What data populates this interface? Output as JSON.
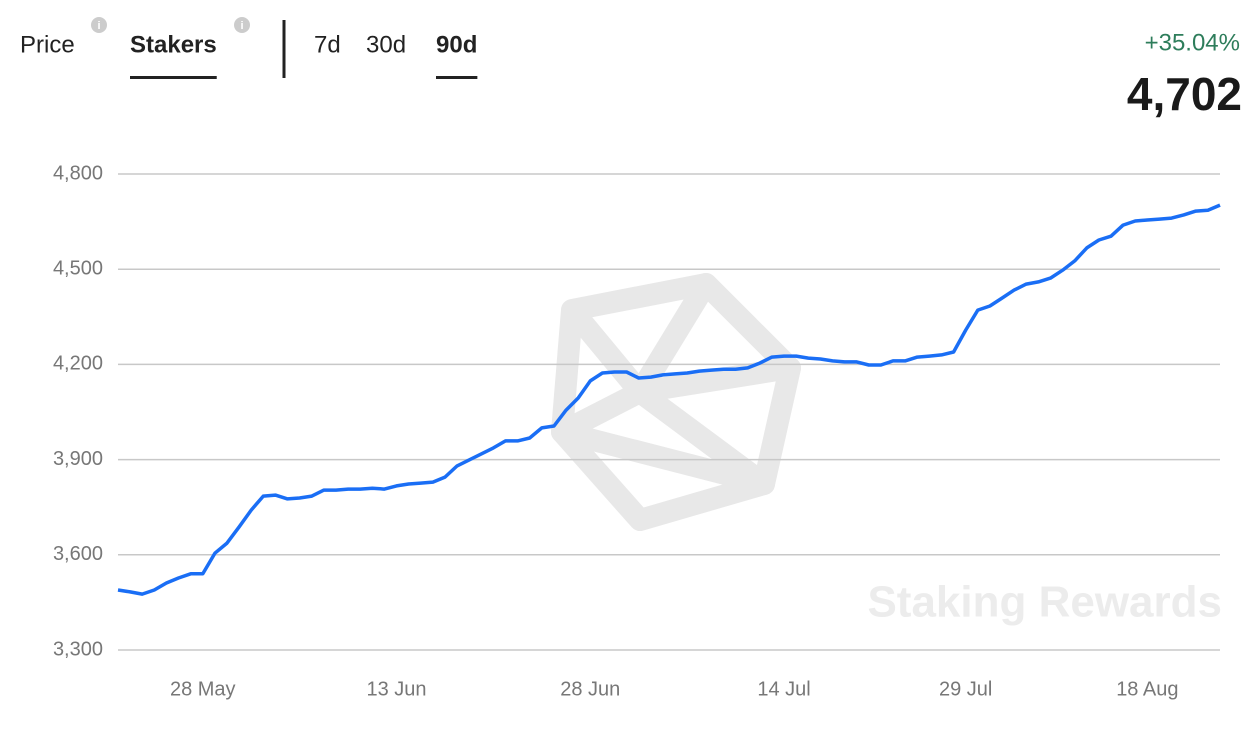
{
  "tabs": [
    "Price",
    "Stakers"
  ],
  "active_tab": 1,
  "periods": [
    "7d",
    "30d",
    "90d"
  ],
  "active_period": 2,
  "change": "+35.04%",
  "current_value": "4,702",
  "watermark": "Staking Rewards",
  "chart_data": {
    "type": "line",
    "categories": [
      null,
      null,
      null,
      null,
      null,
      null,
      null,
      "28 May",
      null,
      null,
      null,
      null,
      null,
      null,
      null,
      null,
      null,
      null,
      null,
      null,
      null,
      null,
      null,
      "13 Jun",
      null,
      null,
      null,
      null,
      null,
      null,
      null,
      null,
      null,
      null,
      null,
      null,
      null,
      null,
      null,
      "28 Jun",
      null,
      null,
      null,
      null,
      null,
      null,
      null,
      null,
      null,
      null,
      null,
      null,
      null,
      null,
      null,
      "14 Jul",
      null,
      null,
      null,
      null,
      null,
      null,
      null,
      null,
      null,
      null,
      null,
      null,
      null,
      null,
      "29 Jul",
      null,
      null,
      null,
      null,
      null,
      null,
      null,
      null,
      null,
      null,
      null,
      null,
      null,
      null,
      "18 Aug",
      null,
      null,
      null,
      null,
      null,
      null
    ],
    "series": [
      {
        "name": "Stakers",
        "color": "#1a6ef5",
        "values": [
          3489,
          3483,
          3476,
          3489,
          3511,
          3527,
          3540,
          3540,
          3605,
          3637,
          3688,
          3741,
          3785,
          3788,
          3776,
          3779,
          3785,
          3804,
          3804,
          3807,
          3807,
          3810,
          3807,
          3817,
          3823,
          3826,
          3829,
          3845,
          3880,
          3899,
          3918,
          3937,
          3959,
          3959,
          3968,
          4000,
          4006,
          4056,
          4094,
          4148,
          4173,
          4176,
          4176,
          4157,
          4160,
          4167,
          4170,
          4173,
          4179,
          4182,
          4185,
          4185,
          4189,
          4204,
          4223,
          4226,
          4226,
          4220,
          4217,
          4211,
          4208,
          4208,
          4198,
          4198,
          4211,
          4211,
          4223,
          4226,
          4230,
          4239,
          4308,
          4371,
          4384,
          4409,
          4434,
          4453,
          4460,
          4472,
          4497,
          4526,
          4567,
          4592,
          4604,
          4639,
          4652,
          4655,
          4658,
          4661,
          4671,
          4683,
          4686,
          4702
        ]
      }
    ],
    "ylim": [
      3300,
      4800
    ],
    "yticks": [
      {
        "value": 3300,
        "label": "3,300"
      },
      {
        "value": 3600,
        "label": "3,600"
      },
      {
        "value": 3900,
        "label": "3,900"
      },
      {
        "value": 4200,
        "label": "4,200"
      },
      {
        "value": 4500,
        "label": "4,500"
      },
      {
        "value": 4800,
        "label": "4,800"
      }
    ],
    "grid": true
  }
}
